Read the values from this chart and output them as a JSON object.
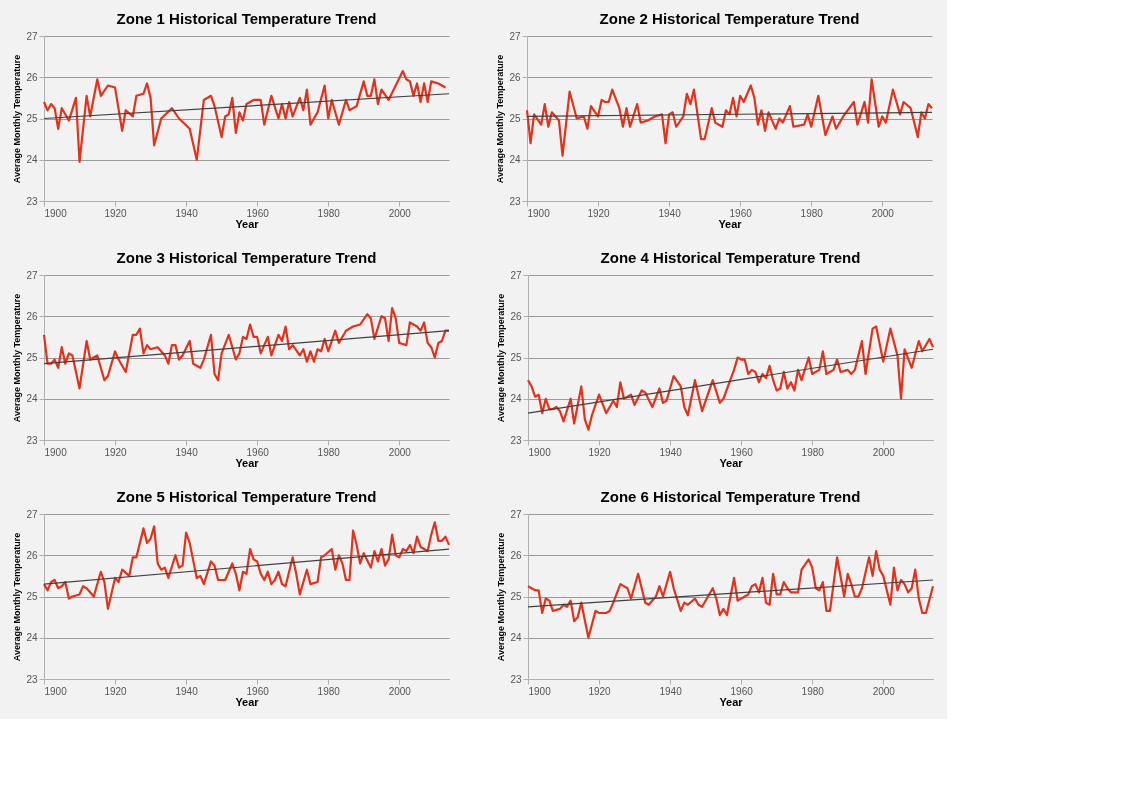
{
  "chart_data": [
    {
      "type": "line",
      "title": "Zone 1  Historical Temperature Trend",
      "xlabel": "Year",
      "ylabel": "Average Monthly Temperature",
      "xlim": [
        1900,
        2014
      ],
      "xticks": [
        1900,
        1920,
        1940,
        1960,
        1980,
        2000
      ],
      "ylim": [
        23,
        27
      ],
      "yticks": [
        23,
        24,
        25,
        26,
        27
      ],
      "grid": "y",
      "series": [
        {
          "color": "#e3321c",
          "x": [
            1900,
            1901,
            1902,
            1903,
            1904,
            1905,
            1907,
            1909,
            1910,
            1912,
            1913,
            1915,
            1916,
            1918,
            1920,
            1922,
            1923,
            1925,
            1926,
            1928,
            1929,
            1930,
            1931,
            1933,
            1936,
            1938,
            1941,
            1943,
            1945,
            1947,
            1948,
            1950,
            1951,
            1952,
            1953,
            1954,
            1955,
            1956,
            1957,
            1959,
            1961,
            1962,
            1964,
            1966,
            1967,
            1968,
            1969,
            1970,
            1972,
            1973,
            1974,
            1975,
            1977,
            1979,
            1980,
            1981,
            1983,
            1985,
            1986,
            1988,
            1990,
            1991,
            1992,
            1993,
            1994,
            1995,
            1997,
            2001,
            2002,
            2003,
            2004,
            2005,
            2006,
            2007,
            2008,
            2009,
            2011,
            2013
          ],
          "values": [
            25.4,
            25.2,
            25.35,
            25.25,
            24.75,
            25.25,
            24.95,
            25.5,
            23.95,
            25.55,
            25.05,
            25.95,
            25.55,
            25.8,
            25.75,
            24.7,
            25.2,
            25.05,
            25.55,
            25.6,
            25.85,
            25.5,
            24.35,
            25.0,
            25.25,
            25.0,
            24.75,
            24.0,
            25.45,
            25.55,
            25.3,
            24.55,
            25.05,
            25.1,
            25.5,
            24.65,
            25.15,
            24.95,
            25.35,
            25.45,
            25.45,
            24.85,
            25.55,
            25.0,
            25.35,
            25.0,
            25.4,
            25.05,
            25.5,
            25.2,
            25.7,
            24.85,
            25.15,
            25.8,
            25.0,
            25.45,
            24.85,
            25.45,
            25.2,
            25.3,
            25.9,
            25.55,
            25.55,
            25.95,
            25.35,
            25.7,
            25.45,
            26.15,
            25.95,
            25.9,
            25.55,
            25.85,
            25.4,
            25.85,
            25.4,
            25.9,
            25.85,
            25.75
          ]
        },
        {
          "type": "line",
          "color": "#404040",
          "x": [
            1900,
            2014
          ],
          "values": [
            25.0,
            25.6
          ]
        }
      ]
    },
    {
      "type": "line",
      "title": "Zone 2  Historical Temperature Trend",
      "xlabel": "Year",
      "ylabel": "Average Monthly Temperature",
      "xlim": [
        1900,
        2014
      ],
      "xticks": [
        1900,
        1920,
        1940,
        1960,
        1980,
        2000
      ],
      "ylim": [
        23,
        27
      ],
      "yticks": [
        23,
        24,
        25,
        26,
        27
      ],
      "grid": "y",
      "series": [
        {
          "color": "#e3321c",
          "x": [
            1900,
            1901,
            1902,
            1904,
            1905,
            1906,
            1907,
            1909,
            1910,
            1912,
            1914,
            1916,
            1917,
            1918,
            1920,
            1921,
            1922,
            1923,
            1924,
            1926,
            1927,
            1928,
            1929,
            1931,
            1932,
            1934,
            1936,
            1938,
            1939,
            1940,
            1941,
            1942,
            1944,
            1945,
            1946,
            1947,
            1949,
            1950,
            1952,
            1953,
            1955,
            1956,
            1957,
            1958,
            1959,
            1960,
            1961,
            1963,
            1964,
            1965,
            1966,
            1967,
            1968,
            1970,
            1971,
            1972,
            1974,
            1975,
            1978,
            1979,
            1980,
            1982,
            1984,
            1986,
            1987,
            1989,
            1992,
            1993,
            1995,
            1996,
            1997,
            1999,
            2000,
            2001,
            2003,
            2005,
            2006,
            2008,
            2010,
            2011,
            2012,
            2013,
            2014
          ],
          "values": [
            25.2,
            24.4,
            25.1,
            24.85,
            25.35,
            24.8,
            25.15,
            24.95,
            24.1,
            25.65,
            25.0,
            25.05,
            24.75,
            25.3,
            25.05,
            25.45,
            25.4,
            25.4,
            25.7,
            25.25,
            24.8,
            25.25,
            24.8,
            25.35,
            24.9,
            24.95,
            25.05,
            25.1,
            24.4,
            25.1,
            25.15,
            24.8,
            25.05,
            25.6,
            25.35,
            25.7,
            24.5,
            24.5,
            25.25,
            24.9,
            24.8,
            25.2,
            25.1,
            25.5,
            25.05,
            25.55,
            25.4,
            25.8,
            25.5,
            24.85,
            25.2,
            24.7,
            25.15,
            24.75,
            25.0,
            24.9,
            25.3,
            24.8,
            24.85,
            25.1,
            24.8,
            25.55,
            24.6,
            25.05,
            24.75,
            25.05,
            25.4,
            24.85,
            25.4,
            24.9,
            25.95,
            24.8,
            25.05,
            24.9,
            25.7,
            25.1,
            25.4,
            25.25,
            24.55,
            25.15,
            25.0,
            25.35,
            25.25
          ]
        },
        {
          "type": "line",
          "color": "#404040",
          "x": [
            1900,
            2014
          ],
          "values": [
            25.05,
            25.15
          ]
        }
      ]
    },
    {
      "type": "line",
      "title": "Zone 3  Historical Temperature Trend",
      "xlabel": "Year",
      "ylabel": "Average Monthly Temperature",
      "xlim": [
        1900,
        2014
      ],
      "xticks": [
        1900,
        1920,
        1940,
        1960,
        1980,
        2000
      ],
      "ylim": [
        23,
        27
      ],
      "yticks": [
        23,
        24,
        25,
        26,
        27
      ],
      "grid": "y",
      "series": [
        {
          "color": "#e3321c",
          "x": [
            1900,
            1901,
            1902,
            1903,
            1904,
            1905,
            1906,
            1907,
            1908,
            1910,
            1912,
            1913,
            1915,
            1917,
            1918,
            1920,
            1921,
            1923,
            1925,
            1926,
            1927,
            1928,
            1929,
            1930,
            1932,
            1934,
            1935,
            1936,
            1937,
            1938,
            1939,
            1941,
            1942,
            1944,
            1945,
            1947,
            1948,
            1949,
            1950,
            1952,
            1954,
            1955,
            1956,
            1957,
            1958,
            1959,
            1960,
            1961,
            1963,
            1964,
            1966,
            1967,
            1968,
            1969,
            1970,
            1972,
            1973,
            1974,
            1975,
            1976,
            1977,
            1978,
            1979,
            1980,
            1982,
            1983,
            1985,
            1987,
            1989,
            1991,
            1992,
            1993,
            1995,
            1996,
            1997,
            1998,
            1999,
            2000,
            2002,
            2003,
            2005,
            2006,
            2007,
            2008,
            2009,
            2010,
            2011,
            2012,
            2013,
            2014
          ],
          "values": [
            25.55,
            24.85,
            24.85,
            24.95,
            24.75,
            25.25,
            24.85,
            25.1,
            25.05,
            24.25,
            25.4,
            24.95,
            25.05,
            24.45,
            24.55,
            25.15,
            24.95,
            24.65,
            25.55,
            25.55,
            25.7,
            25.1,
            25.3,
            25.2,
            25.25,
            25.05,
            24.85,
            25.3,
            25.3,
            24.95,
            25.05,
            25.4,
            24.85,
            24.75,
            24.95,
            25.55,
            24.6,
            24.45,
            25.1,
            25.55,
            24.95,
            25.1,
            25.5,
            25.45,
            25.8,
            25.5,
            25.5,
            25.1,
            25.5,
            25.05,
            25.55,
            25.4,
            25.75,
            25.2,
            25.3,
            25.05,
            25.2,
            24.9,
            25.15,
            24.9,
            25.2,
            25.15,
            25.45,
            25.15,
            25.65,
            25.35,
            25.65,
            25.75,
            25.8,
            26.05,
            25.95,
            25.45,
            26.0,
            25.95,
            25.4,
            26.2,
            25.95,
            25.35,
            25.3,
            25.85,
            25.75,
            25.65,
            25.85,
            25.35,
            25.25,
            25.0,
            25.35,
            25.4,
            25.65,
            25.65
          ]
        },
        {
          "type": "line",
          "color": "#404040",
          "x": [
            1900,
            2014
          ],
          "values": [
            24.85,
            25.65
          ]
        }
      ]
    },
    {
      "type": "line",
      "title": "Zone 4  Historical Temperature Trend",
      "xlabel": "Year",
      "ylabel": "Average Monthly Temperature",
      "xlim": [
        1900,
        2014
      ],
      "xticks": [
        1900,
        1920,
        1940,
        1960,
        1980,
        2000
      ],
      "ylim": [
        23,
        27
      ],
      "yticks": [
        23,
        24,
        25,
        26,
        27
      ],
      "grid": "y",
      "series": [
        {
          "color": "#e3321c",
          "x": [
            1900,
            1901,
            1902,
            1903,
            1904,
            1905,
            1906,
            1907,
            1908,
            1909,
            1910,
            1912,
            1913,
            1915,
            1916,
            1917,
            1918,
            1920,
            1922,
            1924,
            1925,
            1926,
            1927,
            1929,
            1930,
            1932,
            1933,
            1935,
            1937,
            1938,
            1939,
            1941,
            1943,
            1944,
            1945,
            1947,
            1949,
            1952,
            1954,
            1955,
            1958,
            1959,
            1960,
            1961,
            1962,
            1963,
            1964,
            1965,
            1966,
            1967,
            1968,
            1969,
            1970,
            1971,
            1972,
            1973,
            1974,
            1975,
            1976,
            1977,
            1979,
            1980,
            1982,
            1983,
            1984,
            1986,
            1987,
            1988,
            1990,
            1991,
            1992,
            1994,
            1995,
            1997,
            1998,
            2000,
            2002,
            2004,
            2005,
            2006,
            2008,
            2010,
            2011,
            2013,
            2014
          ],
          "values": [
            24.45,
            24.3,
            24.05,
            24.1,
            23.65,
            24.0,
            23.75,
            23.75,
            23.8,
            23.7,
            23.45,
            24.0,
            23.4,
            24.3,
            23.5,
            23.25,
            23.6,
            24.1,
            23.65,
            23.95,
            23.8,
            24.4,
            24.0,
            24.1,
            23.85,
            24.2,
            24.15,
            23.8,
            24.25,
            23.9,
            23.95,
            24.55,
            24.3,
            23.8,
            23.6,
            24.45,
            23.7,
            24.45,
            23.9,
            24.0,
            24.7,
            25.0,
            24.95,
            24.95,
            24.6,
            24.7,
            24.65,
            24.4,
            24.6,
            24.5,
            24.8,
            24.45,
            24.2,
            24.25,
            24.65,
            24.25,
            24.4,
            24.2,
            24.7,
            24.45,
            25.0,
            24.6,
            24.7,
            25.15,
            24.6,
            24.7,
            24.95,
            24.65,
            24.7,
            24.6,
            24.7,
            25.4,
            24.6,
            25.7,
            25.75,
            24.9,
            25.7,
            25.05,
            24.0,
            25.2,
            24.75,
            25.4,
            25.15,
            25.45,
            25.25
          ]
        },
        {
          "type": "line",
          "color": "#404040",
          "x": [
            1900,
            2014
          ],
          "values": [
            23.65,
            25.2
          ]
        }
      ]
    },
    {
      "type": "line",
      "title": "Zone 5  Historical Temperature Trend",
      "xlabel": "Year",
      "ylabel": "Average Monthly Temperature",
      "xlim": [
        1900,
        2014
      ],
      "xticks": [
        1900,
        1920,
        1940,
        1960,
        1980,
        2000
      ],
      "ylim": [
        23,
        27
      ],
      "yticks": [
        23,
        24,
        25,
        26,
        27
      ],
      "grid": "y",
      "series": [
        {
          "color": "#e3321c",
          "x": [
            1900,
            1901,
            1902,
            1903,
            1904,
            1905,
            1906,
            1907,
            1908,
            1910,
            1911,
            1912,
            1914,
            1916,
            1917,
            1918,
            1920,
            1921,
            1922,
            1924,
            1925,
            1926,
            1927,
            1928,
            1929,
            1930,
            1931,
            1932,
            1933,
            1934,
            1935,
            1937,
            1938,
            1939,
            1940,
            1941,
            1943,
            1944,
            1945,
            1947,
            1948,
            1949,
            1951,
            1953,
            1954,
            1955,
            1956,
            1957,
            1958,
            1959,
            1960,
            1961,
            1962,
            1963,
            1964,
            1965,
            1966,
            1967,
            1968,
            1970,
            1971,
            1972,
            1974,
            1975,
            1977,
            1978,
            1979,
            1981,
            1982,
            1983,
            1984,
            1985,
            1986,
            1987,
            1988,
            1989,
            1990,
            1992,
            1993,
            1994,
            1995,
            1996,
            1997,
            1998,
            1999,
            2000,
            2001,
            2002,
            2003,
            2004,
            2005,
            2006,
            2007,
            2008,
            2009,
            2010,
            2011,
            2012,
            2013,
            2014
          ],
          "values": [
            25.3,
            25.15,
            25.35,
            25.4,
            25.2,
            25.25,
            25.35,
            24.95,
            25.0,
            25.05,
            25.25,
            25.2,
            25.0,
            25.6,
            25.35,
            24.7,
            25.45,
            25.35,
            25.65,
            25.5,
            25.95,
            25.95,
            26.3,
            26.65,
            26.3,
            26.4,
            26.7,
            25.8,
            25.65,
            25.7,
            25.45,
            26.0,
            25.7,
            25.75,
            26.55,
            26.3,
            25.45,
            25.5,
            25.3,
            25.85,
            25.75,
            25.4,
            25.4,
            25.8,
            25.55,
            25.15,
            25.6,
            25.55,
            26.15,
            25.9,
            25.85,
            25.55,
            25.4,
            25.6,
            25.3,
            25.4,
            25.6,
            25.3,
            25.25,
            25.95,
            25.55,
            25.05,
            25.65,
            25.3,
            25.35,
            25.95,
            26.0,
            26.15,
            25.65,
            26.0,
            25.8,
            25.4,
            25.4,
            26.6,
            26.25,
            25.8,
            26.05,
            25.7,
            26.1,
            25.85,
            26.15,
            25.75,
            25.9,
            26.5,
            26.0,
            25.95,
            26.15,
            26.1,
            26.25,
            26.05,
            26.45,
            26.2,
            26.15,
            26.1,
            26.5,
            26.8,
            26.35,
            26.35,
            26.45,
            26.25
          ]
        },
        {
          "type": "line",
          "color": "#404040",
          "x": [
            1900,
            2014
          ],
          "values": [
            25.3,
            26.15
          ]
        }
      ]
    },
    {
      "type": "line",
      "title": "Zone 6  Historical Temperature Trend",
      "xlabel": "Year",
      "ylabel": "Average Monthly Temperature",
      "xlim": [
        1900,
        2014
      ],
      "xticks": [
        1900,
        1920,
        1940,
        1960,
        1980,
        2000
      ],
      "ylim": [
        23,
        27
      ],
      "yticks": [
        23,
        24,
        25,
        26,
        27
      ],
      "grid": "y",
      "series": [
        {
          "color": "#e3321c",
          "x": [
            1900,
            1901,
            1902,
            1903,
            1904,
            1905,
            1906,
            1907,
            1909,
            1910,
            1911,
            1912,
            1913,
            1914,
            1915,
            1917,
            1919,
            1920,
            1922,
            1923,
            1924,
            1926,
            1928,
            1929,
            1931,
            1932,
            1933,
            1934,
            1936,
            1937,
            1938,
            1940,
            1941,
            1943,
            1944,
            1945,
            1947,
            1948,
            1949,
            1951,
            1952,
            1953,
            1954,
            1955,
            1956,
            1957,
            1958,
            1959,
            1961,
            1962,
            1963,
            1964,
            1965,
            1966,
            1967,
            1968,
            1969,
            1970,
            1971,
            1972,
            1973,
            1974,
            1976,
            1977,
            1979,
            1980,
            1981,
            1982,
            1983,
            1984,
            1985,
            1987,
            1989,
            1990,
            1991,
            1992,
            1993,
            1994,
            1996,
            1997,
            1998,
            1999,
            2000,
            2002,
            2003,
            2004,
            2005,
            2006,
            2007,
            2008,
            2009,
            2010,
            2011,
            2012,
            2014
          ],
          "values": [
            25.25,
            25.2,
            25.15,
            25.15,
            24.6,
            24.95,
            24.9,
            24.65,
            24.7,
            24.8,
            24.75,
            24.9,
            24.4,
            24.5,
            24.85,
            24.0,
            24.65,
            24.6,
            24.6,
            24.65,
            24.85,
            25.3,
            25.2,
            24.95,
            25.55,
            25.2,
            24.85,
            24.8,
            25.0,
            25.25,
            25.0,
            25.6,
            25.2,
            24.65,
            24.85,
            24.8,
            24.95,
            24.8,
            24.75,
            25.05,
            25.2,
            24.95,
            24.55,
            24.7,
            24.55,
            25.0,
            25.45,
            24.9,
            25.0,
            25.05,
            25.25,
            25.3,
            25.1,
            25.45,
            24.85,
            24.8,
            25.55,
            25.05,
            25.05,
            25.35,
            25.2,
            25.1,
            25.1,
            25.65,
            25.9,
            25.7,
            25.2,
            25.15,
            25.35,
            24.65,
            24.65,
            25.95,
            25.0,
            25.55,
            25.3,
            25.0,
            25.0,
            25.2,
            25.95,
            25.5,
            26.1,
            25.65,
            25.5,
            24.8,
            25.7,
            25.15,
            25.4,
            25.3,
            25.1,
            25.2,
            25.65,
            24.95,
            24.6,
            24.6,
            25.25
          ]
        },
        {
          "type": "line",
          "color": "#404040",
          "x": [
            1900,
            2014
          ],
          "values": [
            24.75,
            25.4
          ]
        }
      ]
    }
  ]
}
